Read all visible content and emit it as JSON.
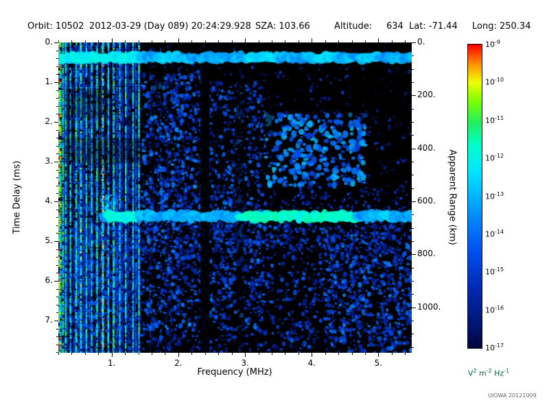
{
  "header": {
    "orbit": "Orbit: 10502",
    "datetime": "2012-03-29 (Day 089) 20:24:29.928",
    "sza": "SZA: 103.66",
    "altitude_label": "Altitude:",
    "altitude_value": "634",
    "lat": "Lat: -71.44",
    "long": "Long: 250.34"
  },
  "credit": "UIOWA 20121009",
  "chart_data": {
    "type": "heatmap",
    "title": "",
    "description": "Radar sounder ionogram: spectral density vs frequency and time delay; black background with blue/cyan speckle, dense vertical plasma-line interference below 1.45 MHz, a bright horizontal band near 0.38 ms and an ionospheric echo band near 4.38 ms.",
    "x_range_mhz": [
      0.2,
      5.5
    ],
    "y_range_ms": [
      0,
      7.81
    ],
    "seed": 20121009,
    "axes": {
      "freq": {
        "title": "Frequency (MHz)",
        "ticks": [
          {
            "v": 1,
            "label": "1."
          },
          {
            "v": 2,
            "label": "2."
          },
          {
            "v": 3,
            "label": "3."
          },
          {
            "v": 4,
            "label": "4."
          },
          {
            "v": 5,
            "label": "5."
          }
        ],
        "minor_step": 0.2
      },
      "time": {
        "title": "Time Delay (ms)",
        "ticks": [
          {
            "v": 0,
            "label": "0."
          },
          {
            "v": 1,
            "label": "1."
          },
          {
            "v": 2,
            "label": "2."
          },
          {
            "v": 3,
            "label": "3."
          },
          {
            "v": 4,
            "label": "4."
          },
          {
            "v": 5,
            "label": "5."
          },
          {
            "v": 6,
            "label": "6."
          },
          {
            "v": 7,
            "label": "7."
          }
        ],
        "minor_step": 0.2
      },
      "range": {
        "title": "Apparent Range (km)",
        "km_per_ms": 150,
        "ticks": [
          {
            "v": 0,
            "label": "0."
          },
          {
            "v": 200,
            "label": "200."
          },
          {
            "v": 400,
            "label": "400."
          },
          {
            "v": 600,
            "label": "600."
          },
          {
            "v": 800,
            "label": "800."
          },
          {
            "v": 1000,
            "label": "1000."
          }
        ],
        "minor_step": 50
      }
    },
    "colorbar": {
      "exponents": [
        -9,
        -10,
        -11,
        -12,
        -13,
        -14,
        -15,
        -16,
        -17
      ],
      "unit_parts": [
        [
          "V",
          "2"
        ],
        [
          "m",
          "-2"
        ],
        [
          "Hz",
          "-1"
        ]
      ],
      "unit_color": "#006633"
    },
    "colormap": [
      [
        0.0,
        "#000022"
      ],
      [
        0.1,
        "#001470"
      ],
      [
        0.22,
        "#0028b4"
      ],
      [
        0.34,
        "#0050f0"
      ],
      [
        0.44,
        "#0084ff"
      ],
      [
        0.52,
        "#00b8ff"
      ],
      [
        0.6,
        "#00e8ff"
      ],
      [
        0.68,
        "#00ffc8"
      ],
      [
        0.75,
        "#20f060"
      ],
      [
        0.82,
        "#7dff00"
      ],
      [
        0.88,
        "#f0ff00"
      ],
      [
        0.94,
        "#ff8c00"
      ],
      [
        1.0,
        "#ff0000"
      ]
    ],
    "features": {
      "speckle_regions": [
        {
          "name": "global-faint",
          "f": [
            0.2,
            5.5
          ],
          "t": [
            0.0,
            7.81
          ],
          "count": 400,
          "int": [
            0.06,
            0.2
          ],
          "size": [
            0.8,
            1.6
          ]
        },
        {
          "name": "mid-sparse",
          "f": [
            1.45,
            5.5
          ],
          "t": [
            0.55,
            4.6
          ],
          "count": 420,
          "int": [
            0.08,
            0.32
          ],
          "size": [
            1.0,
            2.6
          ]
        },
        {
          "name": "mid-left-dense",
          "f": [
            1.45,
            2.35
          ],
          "t": [
            0.8,
            4.6
          ],
          "count": 550,
          "int": [
            0.12,
            0.48
          ],
          "size": [
            1.2,
            3.2
          ]
        },
        {
          "name": "mid-cluster",
          "f": [
            2.45,
            3.3
          ],
          "t": [
            1.0,
            4.6
          ],
          "count": 380,
          "int": [
            0.12,
            0.45
          ],
          "size": [
            1.2,
            3.0
          ]
        },
        {
          "name": "arc-patch",
          "f": [
            3.3,
            4.8
          ],
          "t": [
            1.8,
            3.6
          ],
          "count": 300,
          "int": [
            0.28,
            0.55
          ],
          "size": [
            2.0,
            4.5
          ]
        },
        {
          "name": "echo-halo",
          "f": [
            1.0,
            5.4
          ],
          "t": [
            3.6,
            4.25
          ],
          "count": 200,
          "int": [
            0.12,
            0.35
          ],
          "size": [
            1.2,
            2.6
          ]
        },
        {
          "name": "cusp",
          "f": [
            0.85,
            1.08
          ],
          "t": [
            3.85,
            4.4
          ],
          "count": 70,
          "int": [
            0.4,
            0.62
          ],
          "size": [
            1.8,
            3.5
          ]
        },
        {
          "name": "below-echo",
          "f": [
            1.0,
            5.4
          ],
          "t": [
            4.55,
            5.3
          ],
          "count": 250,
          "int": [
            0.12,
            0.38
          ],
          "size": [
            1.2,
            2.6
          ]
        },
        {
          "name": "bottom",
          "f": [
            0.2,
            5.5
          ],
          "t": [
            4.6,
            7.81
          ],
          "count": 1500,
          "int": [
            0.1,
            0.4
          ],
          "size": [
            1.2,
            3.0
          ]
        },
        {
          "name": "bottom-mid-dense",
          "f": [
            0.5,
            3.3
          ],
          "t": [
            4.6,
            7.2
          ],
          "count": 700,
          "int": [
            0.14,
            0.46
          ],
          "size": [
            1.2,
            3.0
          ]
        },
        {
          "name": "bottom-right",
          "f": [
            4.2,
            5.5
          ],
          "t": [
            4.8,
            7.8
          ],
          "count": 450,
          "int": [
            0.14,
            0.46
          ],
          "size": [
            1.2,
            3.2
          ]
        }
      ],
      "vline_bands": [
        {
          "name": "plasma-line-band",
          "f": [
            0.2,
            1.45
          ],
          "count": 130,
          "int": [
            0.08,
            0.42
          ],
          "width": [
            0.8,
            1.8
          ],
          "gap": 0.5
        },
        {
          "name": "harmonic-dots",
          "f": [
            1.45,
            2.15
          ],
          "count": 16,
          "int": [
            0.12,
            0.32
          ],
          "width": [
            0.8,
            1.4
          ],
          "gap": 0.82
        }
      ],
      "bright_vlines": [
        {
          "f": 0.21,
          "i": 0.78
        },
        {
          "f": 0.235,
          "i": 0.7
        },
        {
          "f": 0.27,
          "i": 0.62
        },
        {
          "f": 0.31,
          "i": 0.6
        },
        {
          "f": 0.38,
          "i": 0.56
        },
        {
          "f": 0.47,
          "i": 0.6
        },
        {
          "f": 0.54,
          "i": 0.68
        },
        {
          "f": 0.62,
          "i": 0.58
        },
        {
          "f": 0.7,
          "i": 0.55
        },
        {
          "f": 0.78,
          "i": 0.6
        },
        {
          "f": 0.87,
          "i": 0.72
        },
        {
          "f": 0.95,
          "i": 0.55
        },
        {
          "f": 1.03,
          "i": 0.62
        },
        {
          "f": 1.12,
          "i": 0.5
        },
        {
          "f": 1.21,
          "i": 0.6
        },
        {
          "f": 1.32,
          "i": 0.55
        },
        {
          "f": 1.41,
          "i": 0.62
        }
      ],
      "dark_rects": [
        {
          "f": [
            2.33,
            2.47
          ],
          "t": [
            0.5,
            7.81
          ],
          "a": 0.88
        },
        {
          "f": [
            2.86,
            2.99
          ],
          "t": [
            0.5,
            7.81
          ],
          "a": 0.5
        },
        {
          "f": [
            3.3,
            3.42
          ],
          "t": [
            0.5,
            2.3
          ],
          "a": 0.55
        },
        {
          "f": [
            1.6,
            1.78
          ],
          "t": [
            0.5,
            1.6
          ],
          "a": 0.45
        },
        {
          "f": [
            4.55,
            5.5
          ],
          "t": [
            0.5,
            1.9
          ],
          "a": 0.4
        },
        {
          "f": [
            0.3,
            0.95
          ],
          "t": [
            1.15,
            1.9
          ],
          "a": 0.3
        },
        {
          "f": [
            0.28,
            1.45
          ],
          "t": [
            2.4,
            3.05
          ],
          "a": 0.3
        }
      ],
      "h_bands": [
        {
          "name": "direct-signal-band",
          "t": 0.38,
          "half_ms": 0.1,
          "f": [
            0.2,
            5.5
          ],
          "base": 0.5,
          "jitter": 0.1,
          "gap": 0.04,
          "bright": [
            {
              "f": [
                0.2,
                1.45
              ],
              "i": 0.62
            },
            {
              "f": [
                1.75,
                2.05
              ],
              "i": 0.56
            },
            {
              "f": [
                3.05,
                3.5
              ],
              "i": 0.58
            },
            {
              "f": [
                3.95,
                4.45
              ],
              "i": 0.56
            },
            {
              "f": [
                4.75,
                5.0
              ],
              "i": 0.55
            }
          ]
        },
        {
          "name": "echo-band",
          "t": 4.38,
          "half_ms": 0.1,
          "f": [
            0.88,
            5.5
          ],
          "base": 0.5,
          "jitter": 0.12,
          "gap": 0.07,
          "bright": [
            {
              "f": [
                0.95,
                1.4
              ],
              "i": 0.64
            },
            {
              "f": [
                2.9,
                3.5
              ],
              "i": 0.68
            },
            {
              "f": [
                3.5,
                4.65
              ],
              "i": 0.66
            },
            {
              "f": [
                4.95,
                5.25
              ],
              "i": 0.55
            }
          ]
        }
      ]
    }
  }
}
